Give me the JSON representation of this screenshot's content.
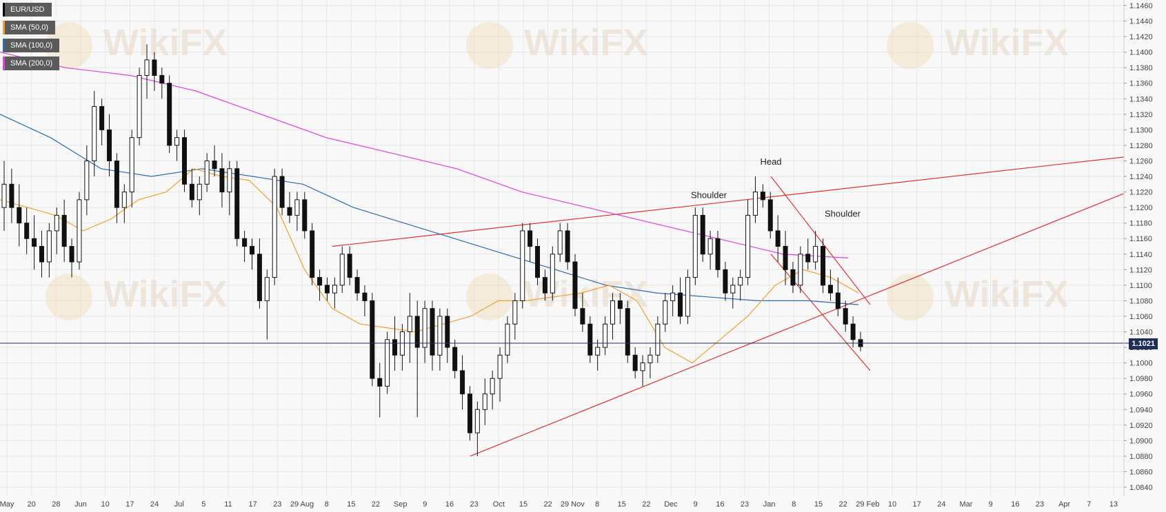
{
  "legend": [
    {
      "label": "EUR/USD",
      "color": "#000000"
    },
    {
      "label": "SMA (50,0)",
      "color": "#f0a030"
    },
    {
      "label": "SMA (100,0)",
      "color": "#2c6bb0"
    },
    {
      "label": "SMA (200,0)",
      "color": "#e040e0"
    }
  ],
  "price_tag": "1.1021",
  "watermark": "WikiFX",
  "chart_data": {
    "type": "candlestick",
    "y_ticks": [
      "1.1460",
      "1.1440",
      "1.1420",
      "1.1400",
      "1.1380",
      "1.1360",
      "1.1340",
      "1.1320",
      "1.1300",
      "1.1280",
      "1.1260",
      "1.1240",
      "1.1220",
      "1.1200",
      "1.1180",
      "1.1160",
      "1.1140",
      "1.1120",
      "1.1100",
      "1.1080",
      "1.1060",
      "1.1040",
      "1.1020",
      "1.1000",
      "1.0980",
      "1.0960",
      "1.0940",
      "1.0920",
      "1.0900",
      "1.0880",
      "1.0860",
      "1.0840"
    ],
    "ylim": [
      1.083,
      1.1465
    ],
    "x_labels": [
      "May",
      "20",
      "28",
      "Jun",
      "10",
      "17",
      "24",
      "Jul",
      "5",
      "11",
      "17",
      "23",
      "29 Aug",
      "8",
      "15",
      "22",
      "Sep",
      "9",
      "16",
      "23",
      "Oct",
      "15",
      "22",
      "29 Nov",
      "8",
      "15",
      "22",
      "Dec",
      "9",
      "16",
      "23",
      "Jan",
      "8",
      "15",
      "22",
      "29 Feb",
      "10",
      "17",
      "24",
      "Mar",
      "9",
      "16",
      "23",
      "Apr",
      "7",
      "13"
    ],
    "annotations": [
      "Head",
      "Shoulder",
      "Shoulder"
    ],
    "current_price": 1.1021,
    "grid": true,
    "candles": [
      {
        "o": 1.12,
        "h": 1.126,
        "l": 1.117,
        "c": 1.123
      },
      {
        "o": 1.123,
        "h": 1.125,
        "l": 1.118,
        "c": 1.12
      },
      {
        "o": 1.12,
        "h": 1.123,
        "l": 1.115,
        "c": 1.118
      },
      {
        "o": 1.118,
        "h": 1.12,
        "l": 1.114,
        "c": 1.116
      },
      {
        "o": 1.116,
        "h": 1.119,
        "l": 1.112,
        "c": 1.115
      },
      {
        "o": 1.115,
        "h": 1.117,
        "l": 1.111,
        "c": 1.113
      },
      {
        "o": 1.113,
        "h": 1.118,
        "l": 1.111,
        "c": 1.117
      },
      {
        "o": 1.117,
        "h": 1.12,
        "l": 1.114,
        "c": 1.119
      },
      {
        "o": 1.119,
        "h": 1.121,
        "l": 1.113,
        "c": 1.115
      },
      {
        "o": 1.115,
        "h": 1.116,
        "l": 1.111,
        "c": 1.113
      },
      {
        "o": 1.113,
        "h": 1.122,
        "l": 1.112,
        "c": 1.121
      },
      {
        "o": 1.121,
        "h": 1.128,
        "l": 1.119,
        "c": 1.126
      },
      {
        "o": 1.126,
        "h": 1.135,
        "l": 1.124,
        "c": 1.133
      },
      {
        "o": 1.133,
        "h": 1.134,
        "l": 1.128,
        "c": 1.13
      },
      {
        "o": 1.13,
        "h": 1.132,
        "l": 1.124,
        "c": 1.126
      },
      {
        "o": 1.126,
        "h": 1.127,
        "l": 1.118,
        "c": 1.12
      },
      {
        "o": 1.12,
        "h": 1.123,
        "l": 1.118,
        "c": 1.122
      },
      {
        "o": 1.122,
        "h": 1.13,
        "l": 1.12,
        "c": 1.129
      },
      {
        "o": 1.129,
        "h": 1.138,
        "l": 1.128,
        "c": 1.137
      },
      {
        "o": 1.137,
        "h": 1.141,
        "l": 1.134,
        "c": 1.139
      },
      {
        "o": 1.139,
        "h": 1.14,
        "l": 1.135,
        "c": 1.137
      },
      {
        "o": 1.137,
        "h": 1.138,
        "l": 1.134,
        "c": 1.136
      },
      {
        "o": 1.136,
        "h": 1.137,
        "l": 1.127,
        "c": 1.128
      },
      {
        "o": 1.128,
        "h": 1.13,
        "l": 1.126,
        "c": 1.129
      },
      {
        "o": 1.129,
        "h": 1.13,
        "l": 1.122,
        "c": 1.123
      },
      {
        "o": 1.123,
        "h": 1.125,
        "l": 1.12,
        "c": 1.121
      },
      {
        "o": 1.121,
        "h": 1.124,
        "l": 1.119,
        "c": 1.123
      },
      {
        "o": 1.123,
        "h": 1.127,
        "l": 1.122,
        "c": 1.126
      },
      {
        "o": 1.126,
        "h": 1.128,
        "l": 1.124,
        "c": 1.125
      },
      {
        "o": 1.125,
        "h": 1.127,
        "l": 1.12,
        "c": 1.122
      },
      {
        "o": 1.122,
        "h": 1.126,
        "l": 1.119,
        "c": 1.125
      },
      {
        "o": 1.125,
        "h": 1.126,
        "l": 1.115,
        "c": 1.116
      },
      {
        "o": 1.116,
        "h": 1.117,
        "l": 1.113,
        "c": 1.115
      },
      {
        "o": 1.115,
        "h": 1.116,
        "l": 1.112,
        "c": 1.114
      },
      {
        "o": 1.114,
        "h": 1.116,
        "l": 1.107,
        "c": 1.108
      },
      {
        "o": 1.108,
        "h": 1.112,
        "l": 1.103,
        "c": 1.111
      },
      {
        "o": 1.111,
        "h": 1.125,
        "l": 1.11,
        "c": 1.124
      },
      {
        "o": 1.124,
        "h": 1.125,
        "l": 1.119,
        "c": 1.12
      },
      {
        "o": 1.12,
        "h": 1.122,
        "l": 1.118,
        "c": 1.119
      },
      {
        "o": 1.119,
        "h": 1.122,
        "l": 1.117,
        "c": 1.121
      },
      {
        "o": 1.121,
        "h": 1.122,
        "l": 1.116,
        "c": 1.117
      },
      {
        "o": 1.117,
        "h": 1.118,
        "l": 1.11,
        "c": 1.111
      },
      {
        "o": 1.111,
        "h": 1.112,
        "l": 1.108,
        "c": 1.11
      },
      {
        "o": 1.11,
        "h": 1.111,
        "l": 1.108,
        "c": 1.109
      },
      {
        "o": 1.109,
        "h": 1.111,
        "l": 1.107,
        "c": 1.11
      },
      {
        "o": 1.11,
        "h": 1.115,
        "l": 1.109,
        "c": 1.114
      },
      {
        "o": 1.114,
        "h": 1.115,
        "l": 1.11,
        "c": 1.111
      },
      {
        "o": 1.111,
        "h": 1.112,
        "l": 1.108,
        "c": 1.109
      },
      {
        "o": 1.109,
        "h": 1.11,
        "l": 1.106,
        "c": 1.108
      },
      {
        "o": 1.108,
        "h": 1.109,
        "l": 1.097,
        "c": 1.098
      },
      {
        "o": 1.098,
        "h": 1.1,
        "l": 1.093,
        "c": 1.097
      },
      {
        "o": 1.097,
        "h": 1.104,
        "l": 1.096,
        "c": 1.103
      },
      {
        "o": 1.103,
        "h": 1.106,
        "l": 1.099,
        "c": 1.101
      },
      {
        "o": 1.101,
        "h": 1.105,
        "l": 1.099,
        "c": 1.104
      },
      {
        "o": 1.104,
        "h": 1.109,
        "l": 1.1,
        "c": 1.106
      },
      {
        "o": 1.106,
        "h": 1.108,
        "l": 1.093,
        "c": 1.102
      },
      {
        "o": 1.102,
        "h": 1.108,
        "l": 1.1,
        "c": 1.107
      },
      {
        "o": 1.107,
        "h": 1.108,
        "l": 1.099,
        "c": 1.101
      },
      {
        "o": 1.101,
        "h": 1.107,
        "l": 1.099,
        "c": 1.106
      },
      {
        "o": 1.106,
        "h": 1.107,
        "l": 1.1,
        "c": 1.102
      },
      {
        "o": 1.102,
        "h": 1.103,
        "l": 1.098,
        "c": 1.099
      },
      {
        "o": 1.099,
        "h": 1.101,
        "l": 1.094,
        "c": 1.096
      },
      {
        "o": 1.096,
        "h": 1.097,
        "l": 1.09,
        "c": 1.091
      },
      {
        "o": 1.091,
        "h": 1.095,
        "l": 1.088,
        "c": 1.094
      },
      {
        "o": 1.094,
        "h": 1.098,
        "l": 1.092,
        "c": 1.096
      },
      {
        "o": 1.096,
        "h": 1.099,
        "l": 1.094,
        "c": 1.098
      },
      {
        "o": 1.098,
        "h": 1.102,
        "l": 1.095,
        "c": 1.101
      },
      {
        "o": 1.101,
        "h": 1.106,
        "l": 1.1,
        "c": 1.105
      },
      {
        "o": 1.105,
        "h": 1.109,
        "l": 1.103,
        "c": 1.108
      },
      {
        "o": 1.108,
        "h": 1.118,
        "l": 1.107,
        "c": 1.117
      },
      {
        "o": 1.117,
        "h": 1.118,
        "l": 1.113,
        "c": 1.115
      },
      {
        "o": 1.115,
        "h": 1.116,
        "l": 1.11,
        "c": 1.111
      },
      {
        "o": 1.111,
        "h": 1.112,
        "l": 1.108,
        "c": 1.109
      },
      {
        "o": 1.109,
        "h": 1.115,
        "l": 1.108,
        "c": 1.114
      },
      {
        "o": 1.114,
        "h": 1.118,
        "l": 1.113,
        "c": 1.117
      },
      {
        "o": 1.117,
        "h": 1.118,
        "l": 1.112,
        "c": 1.113
      },
      {
        "o": 1.113,
        "h": 1.114,
        "l": 1.106,
        "c": 1.107
      },
      {
        "o": 1.107,
        "h": 1.109,
        "l": 1.104,
        "c": 1.105
      },
      {
        "o": 1.105,
        "h": 1.106,
        "l": 1.1,
        "c": 1.101
      },
      {
        "o": 1.101,
        "h": 1.103,
        "l": 1.099,
        "c": 1.102
      },
      {
        "o": 1.102,
        "h": 1.106,
        "l": 1.101,
        "c": 1.105
      },
      {
        "o": 1.105,
        "h": 1.109,
        "l": 1.103,
        "c": 1.108
      },
      {
        "o": 1.108,
        "h": 1.109,
        "l": 1.105,
        "c": 1.107
      },
      {
        "o": 1.107,
        "h": 1.108,
        "l": 1.1,
        "c": 1.101
      },
      {
        "o": 1.101,
        "h": 1.102,
        "l": 1.098,
        "c": 1.099
      },
      {
        "o": 1.099,
        "h": 1.101,
        "l": 1.097,
        "c": 1.1
      },
      {
        "o": 1.1,
        "h": 1.102,
        "l": 1.098,
        "c": 1.101
      },
      {
        "o": 1.101,
        "h": 1.106,
        "l": 1.1,
        "c": 1.105
      },
      {
        "o": 1.105,
        "h": 1.109,
        "l": 1.104,
        "c": 1.108
      },
      {
        "o": 1.108,
        "h": 1.11,
        "l": 1.106,
        "c": 1.109
      },
      {
        "o": 1.109,
        "h": 1.111,
        "l": 1.105,
        "c": 1.106
      },
      {
        "o": 1.106,
        "h": 1.112,
        "l": 1.105,
        "c": 1.111
      },
      {
        "o": 1.111,
        "h": 1.12,
        "l": 1.11,
        "c": 1.119
      },
      {
        "o": 1.119,
        "h": 1.12,
        "l": 1.113,
        "c": 1.114
      },
      {
        "o": 1.114,
        "h": 1.117,
        "l": 1.112,
        "c": 1.116
      },
      {
        "o": 1.116,
        "h": 1.117,
        "l": 1.111,
        "c": 1.112
      },
      {
        "o": 1.112,
        "h": 1.113,
        "l": 1.108,
        "c": 1.109
      },
      {
        "o": 1.109,
        "h": 1.111,
        "l": 1.107,
        "c": 1.11
      },
      {
        "o": 1.11,
        "h": 1.112,
        "l": 1.108,
        "c": 1.111
      },
      {
        "o": 1.111,
        "h": 1.121,
        "l": 1.11,
        "c": 1.119
      },
      {
        "o": 1.119,
        "h": 1.124,
        "l": 1.118,
        "c": 1.122
      },
      {
        "o": 1.122,
        "h": 1.123,
        "l": 1.12,
        "c": 1.121
      },
      {
        "o": 1.121,
        "h": 1.122,
        "l": 1.116,
        "c": 1.117
      },
      {
        "o": 1.117,
        "h": 1.119,
        "l": 1.113,
        "c": 1.115
      },
      {
        "o": 1.115,
        "h": 1.117,
        "l": 1.11,
        "c": 1.112
      },
      {
        "o": 1.112,
        "h": 1.113,
        "l": 1.109,
        "c": 1.11
      },
      {
        "o": 1.11,
        "h": 1.115,
        "l": 1.109,
        "c": 1.114
      },
      {
        "o": 1.114,
        "h": 1.116,
        "l": 1.112,
        "c": 1.113
      },
      {
        "o": 1.113,
        "h": 1.117,
        "l": 1.112,
        "c": 1.115
      },
      {
        "o": 1.115,
        "h": 1.116,
        "l": 1.109,
        "c": 1.11
      },
      {
        "o": 1.11,
        "h": 1.112,
        "l": 1.108,
        "c": 1.109
      },
      {
        "o": 1.109,
        "h": 1.111,
        "l": 1.106,
        "c": 1.107
      },
      {
        "o": 1.107,
        "h": 1.108,
        "l": 1.104,
        "c": 1.105
      },
      {
        "o": 1.105,
        "h": 1.106,
        "l": 1.102,
        "c": 1.103
      },
      {
        "o": 1.103,
        "h": 1.104,
        "l": 1.1015,
        "c": 1.1021
      }
    ],
    "sma50": [
      1.121,
      1.12,
      1.119,
      1.117,
      1.1185,
      1.121,
      1.122,
      1.125,
      1.124,
      1.1235,
      1.12,
      1.112,
      1.107,
      1.105,
      1.1045,
      1.104,
      1.105,
      1.106,
      1.108,
      1.108,
      1.1085,
      1.109,
      1.11,
      1.108,
      1.102,
      1.1,
      1.103,
      1.106,
      1.11,
      1.112,
      1.111,
      1.109
    ],
    "sma100": [
      1.132,
      1.129,
      1.125,
      1.124,
      1.125,
      1.124,
      1.123,
      1.12,
      1.118,
      1.116,
      1.114,
      1.112,
      1.11,
      1.109,
      1.1085,
      1.108,
      1.108,
      1.1075
    ],
    "sma200": [
      1.14,
      1.138,
      1.137,
      1.135,
      1.132,
      1.129,
      1.127,
      1.125,
      1.122,
      1.12,
      1.118,
      1.116,
      1.114,
      1.1135
    ]
  }
}
